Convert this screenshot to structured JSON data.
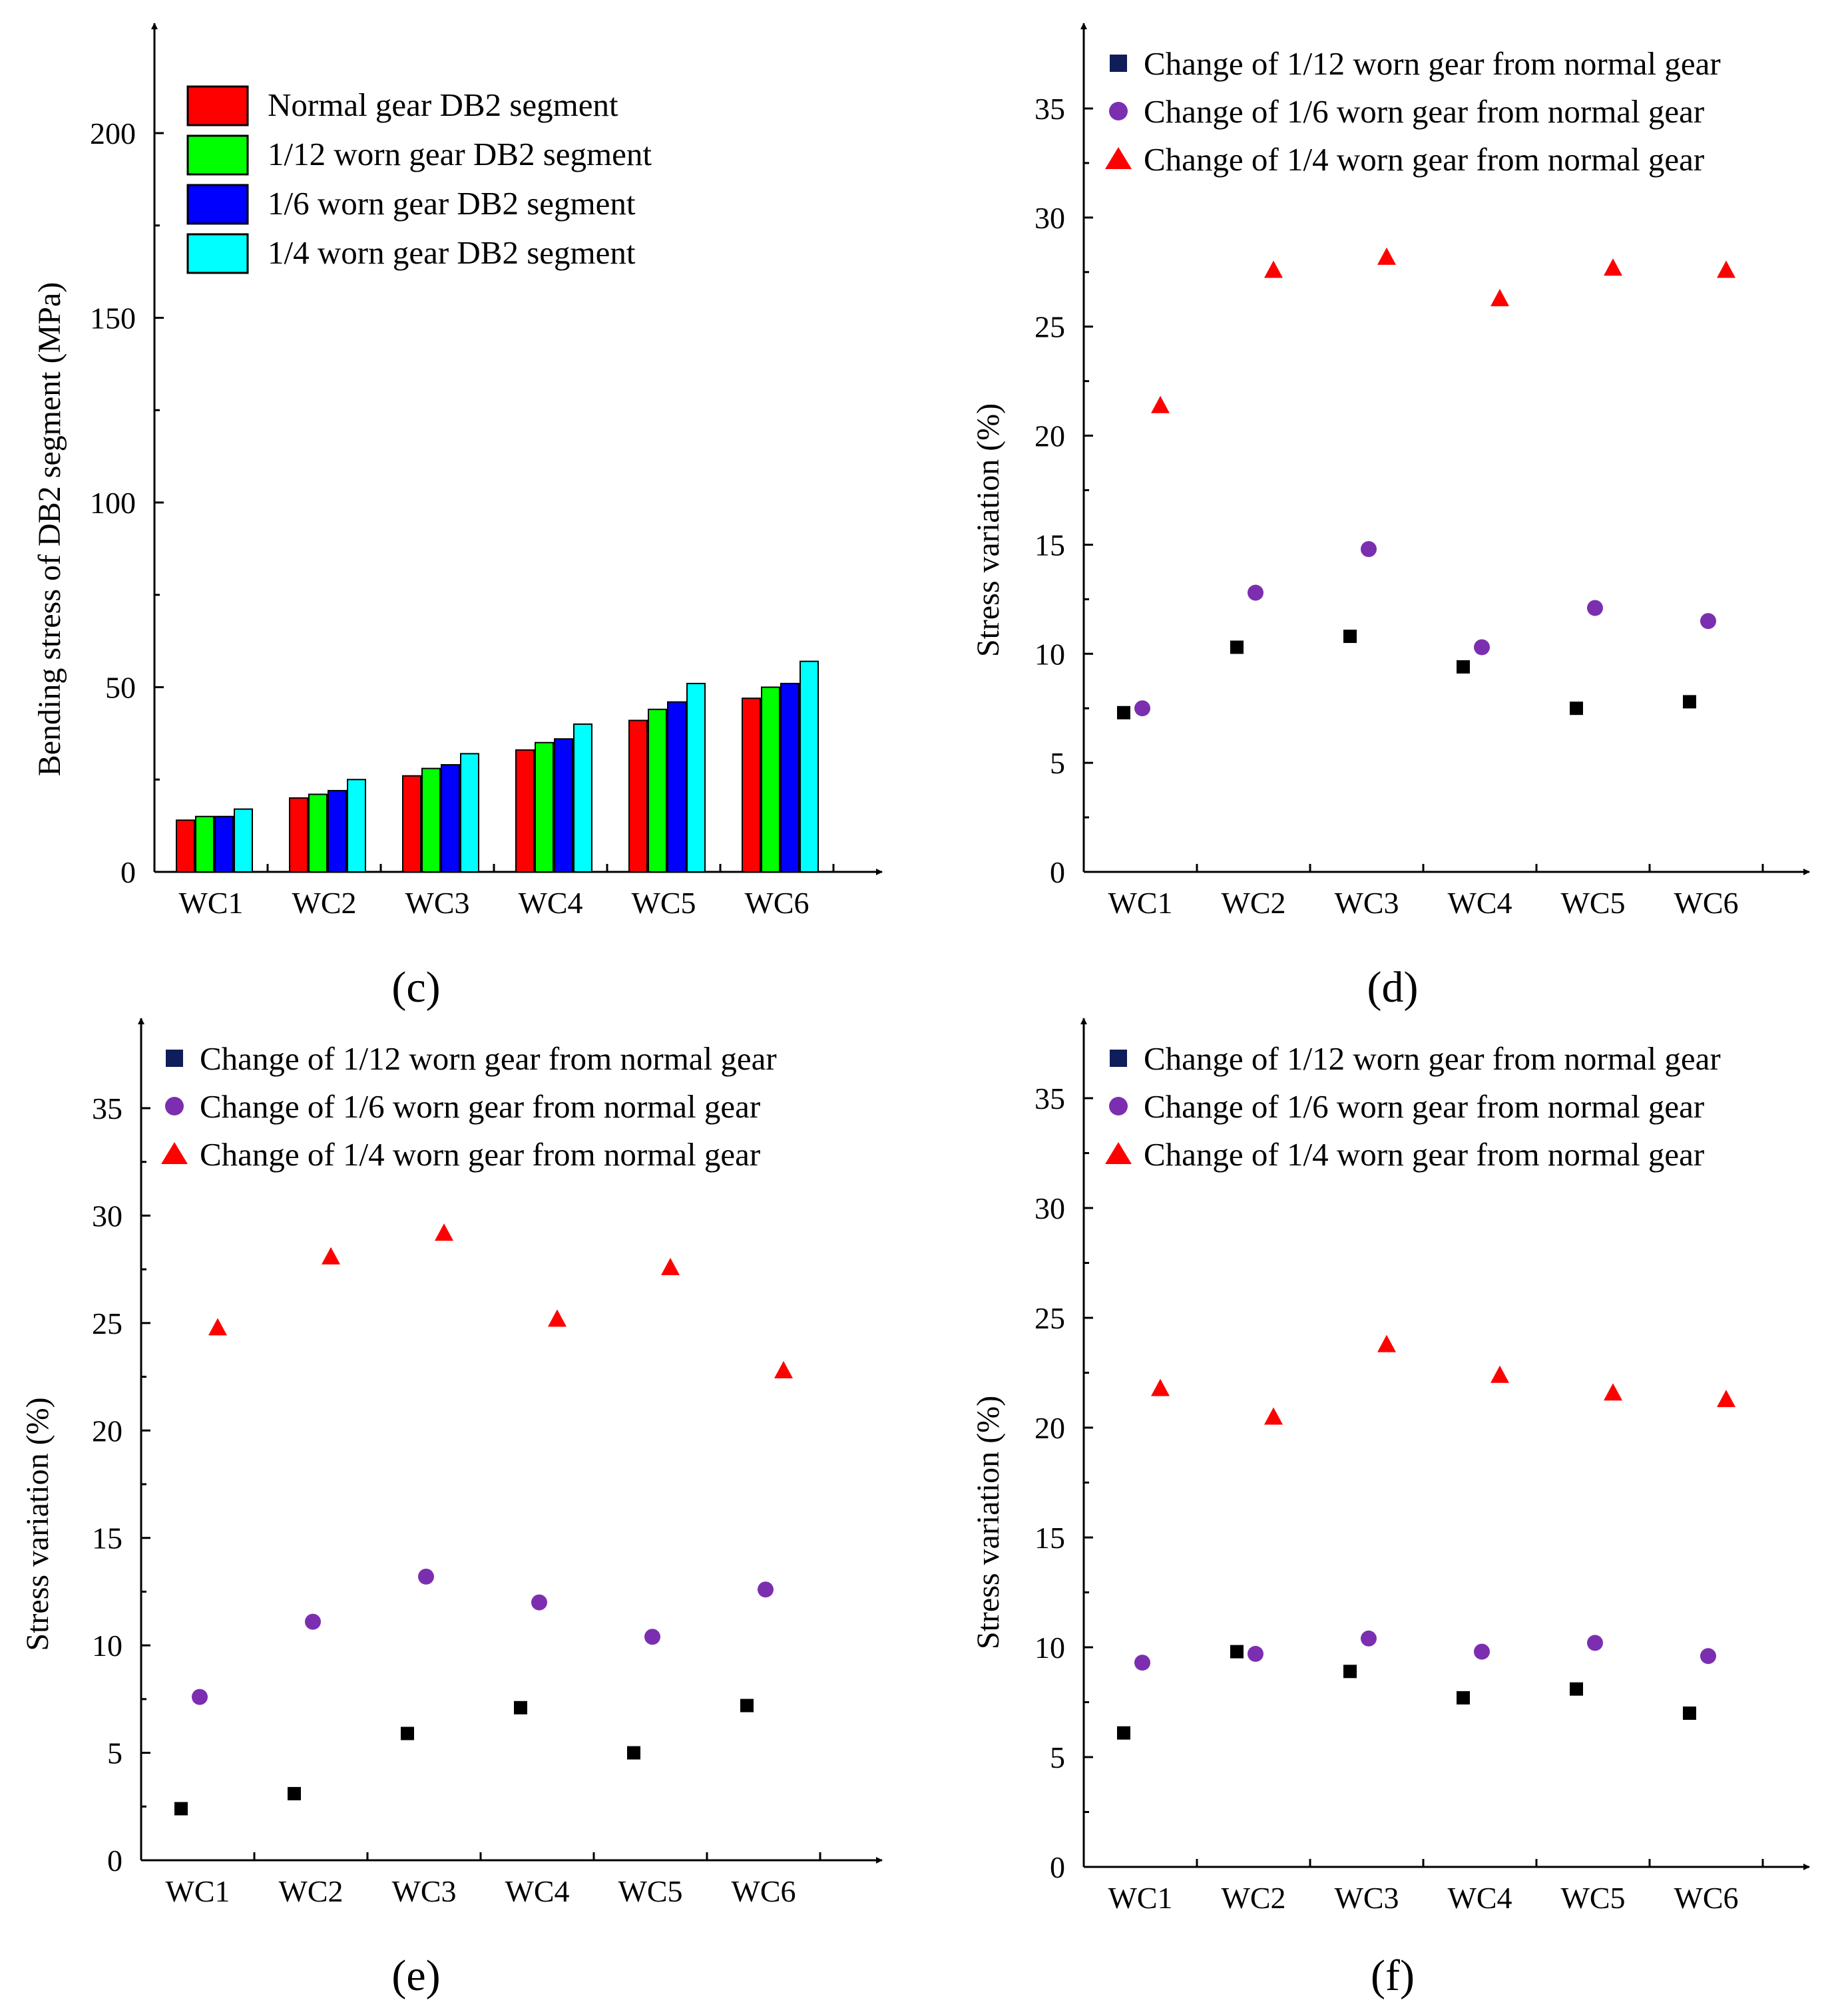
{
  "colors": {
    "normal": "#ff0000",
    "w12": "#00ff00",
    "w6": "#0000ff",
    "w4": "#00ffff",
    "square": "#000000",
    "square_legend": "#0f1e5a",
    "circle": "#7b2fb0",
    "triangle": "#ff0000"
  },
  "chart_data": [
    {
      "panel": "(c)",
      "type": "bar",
      "categories": [
        "WC1",
        "WC2",
        "WC3",
        "WC4",
        "WC5",
        "WC6"
      ],
      "ylabel": "Bending stress of DB2 segment (MPa)",
      "xlabel": "",
      "ylim": [
        0,
        230
      ],
      "yticks": [
        "0",
        "50",
        "100",
        "150",
        "200"
      ],
      "series": [
        {
          "name": "Normal gear DB2 segment",
          "legend": {
            "main": "Normal gear ",
            "arc": "DB",
            "sub": "2",
            "tail": "segment"
          },
          "color_key": "normal",
          "values": [
            14,
            20,
            26,
            33,
            41,
            47
          ]
        },
        {
          "name": "1/12 worn gear DB2 segment",
          "legend": {
            "main": "1/12 worn gear ",
            "arc": "DB",
            "sub": "2",
            "tail": " segment"
          },
          "color_key": "w12",
          "values": [
            15,
            21,
            28,
            35,
            44,
            50
          ]
        },
        {
          "name": "1/6 worn gear DB2 segment",
          "legend": {
            "main": "1/6 worn gear ",
            "arc": "DB",
            "sub": "2",
            "tail": " segment"
          },
          "color_key": "w6",
          "values": [
            15,
            22,
            29,
            36,
            46,
            51
          ]
        },
        {
          "name": "1/4 worn gear DB2 segment",
          "legend": {
            "main": "1/4 worn gear ",
            "arc": "DB",
            "sub": "2",
            "tail": " segment"
          },
          "color_key": "w4",
          "values": [
            17,
            25,
            32,
            40,
            51,
            57
          ]
        }
      ]
    },
    {
      "panel": "(d)",
      "type": "scatter",
      "categories": [
        "WC1",
        "WC2",
        "WC3",
        "WC4",
        "WC5",
        "WC6"
      ],
      "ylabel": "Stress variation (%)",
      "xlabel": "",
      "ylim": [
        0,
        37
      ],
      "yticks": [
        "0",
        "5",
        "10",
        "15",
        "20",
        "25",
        "30",
        "35"
      ],
      "series": [
        {
          "name": "Change of 1/12 worn gear from normal gear",
          "marker": "square",
          "values": [
            7.3,
            10.3,
            10.8,
            9.4,
            7.5,
            7.8
          ]
        },
        {
          "name": "Change of 1/6 worn gear from normal gear",
          "marker": "circle",
          "values": [
            7.5,
            12.8,
            14.8,
            10.3,
            12.1,
            11.5
          ]
        },
        {
          "name": "Change of 1/4 worn gear from normal gear",
          "marker": "triangle",
          "values": [
            21.4,
            27.6,
            28.2,
            26.3,
            27.7,
            27.6
          ]
        }
      ]
    },
    {
      "panel": "(e)",
      "type": "scatter",
      "categories": [
        "WC1",
        "WC2",
        "WC3",
        "WC4",
        "WC5",
        "WC6"
      ],
      "ylabel": "Stress variation (%)",
      "xlabel": "",
      "ylim": [
        0,
        37
      ],
      "yticks": [
        "0",
        "5",
        "10",
        "15",
        "20",
        "25",
        "30",
        "35"
      ],
      "series": [
        {
          "name": "Change of 1/12 worn gear from normal gear",
          "marker": "square",
          "values": [
            2.4,
            3.1,
            5.9,
            7.1,
            5.0,
            7.2
          ]
        },
        {
          "name": "Change of 1/6 worn gear from normal gear",
          "marker": "circle",
          "values": [
            7.6,
            11.1,
            13.2,
            12.0,
            10.4,
            12.6
          ]
        },
        {
          "name": "Change of 1/4 worn gear from normal gear",
          "marker": "triangle",
          "values": [
            24.8,
            28.1,
            29.2,
            25.2,
            27.6,
            22.8
          ]
        }
      ]
    },
    {
      "panel": "(f)",
      "type": "scatter",
      "categories": [
        "WC1",
        "WC2",
        "WC3",
        "WC4",
        "WC5",
        "WC6"
      ],
      "ylabel": "Stress variation (%)",
      "xlabel": "",
      "ylim": [
        0,
        37
      ],
      "yticks": [
        "0",
        "5",
        "10",
        "15",
        "20",
        "25",
        "30",
        "35"
      ],
      "series": [
        {
          "name": "Change of 1/12 worn gear from normal gear",
          "marker": "square",
          "values": [
            6.1,
            9.8,
            8.9,
            7.7,
            8.1,
            7.0
          ]
        },
        {
          "name": "Change of 1/6 worn gear from normal gear",
          "marker": "circle",
          "values": [
            9.3,
            9.7,
            10.4,
            9.8,
            10.2,
            9.6
          ]
        },
        {
          "name": "Change of 1/4 worn gear from normal gear",
          "marker": "triangle",
          "values": [
            21.8,
            20.5,
            23.8,
            22.4,
            21.6,
            21.3
          ]
        }
      ]
    }
  ]
}
